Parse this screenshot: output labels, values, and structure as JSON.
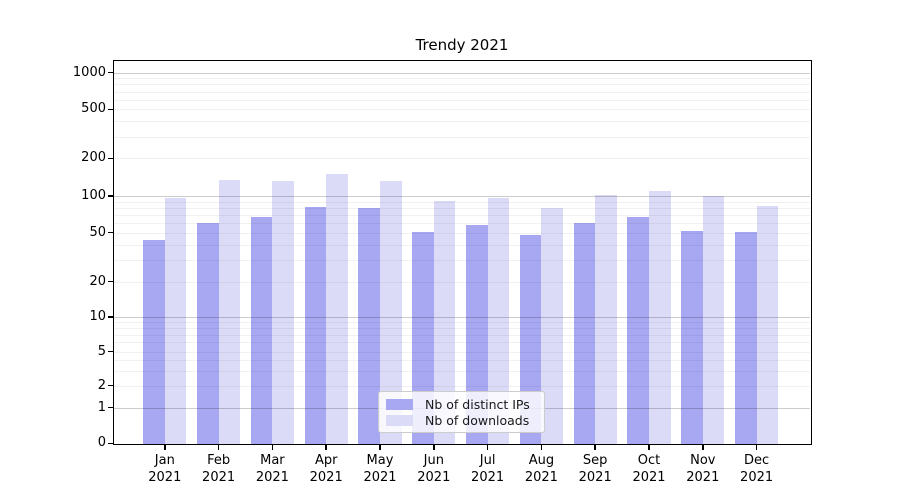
{
  "figure": {
    "title": "Trendy 2021"
  },
  "chart_data": {
    "type": "bar",
    "title": "Trendy 2021",
    "categories": [
      "Jan 2021",
      "Feb 2021",
      "Mar 2021",
      "Apr 2021",
      "May 2021",
      "Jun 2021",
      "Jul 2021",
      "Aug 2021",
      "Sep 2021",
      "Oct 2021",
      "Nov 2021",
      "Dec 2021"
    ],
    "x_labels": [
      {
        "line1": "Jan",
        "line2": "2021"
      },
      {
        "line1": "Feb",
        "line2": "2021"
      },
      {
        "line1": "Mar",
        "line2": "2021"
      },
      {
        "line1": "Apr",
        "line2": "2021"
      },
      {
        "line1": "May",
        "line2": "2021"
      },
      {
        "line1": "Jun",
        "line2": "2021"
      },
      {
        "line1": "Jul",
        "line2": "2021"
      },
      {
        "line1": "Aug",
        "line2": "2021"
      },
      {
        "line1": "Sep",
        "line2": "2021"
      },
      {
        "line1": "Oct",
        "line2": "2021"
      },
      {
        "line1": "Nov",
        "line2": "2021"
      },
      {
        "line1": "Dec",
        "line2": "2021"
      }
    ],
    "series": [
      {
        "name": "Nb of distinct IPs",
        "color": "#a8a8f2",
        "values": [
          44,
          60,
          68,
          81,
          80,
          51,
          58,
          48,
          60,
          68,
          52,
          51
        ]
      },
      {
        "name": "Nb of downloads",
        "color": "#dbdbf8",
        "values": [
          96,
          134,
          132,
          150,
          132,
          91,
          96,
          80,
          102,
          111,
          100,
          83
        ]
      }
    ],
    "yscale": "symlog",
    "yticks": [
      1000,
      500,
      200,
      100,
      50,
      20,
      10,
      5,
      2,
      1,
      0
    ],
    "ylim": [
      0,
      1300
    ],
    "grid": true,
    "legend_position": "lower center",
    "axis_color": "#000000",
    "major_grid_color": "#cccccc",
    "minor_grid_color": "#f0f0f0"
  }
}
